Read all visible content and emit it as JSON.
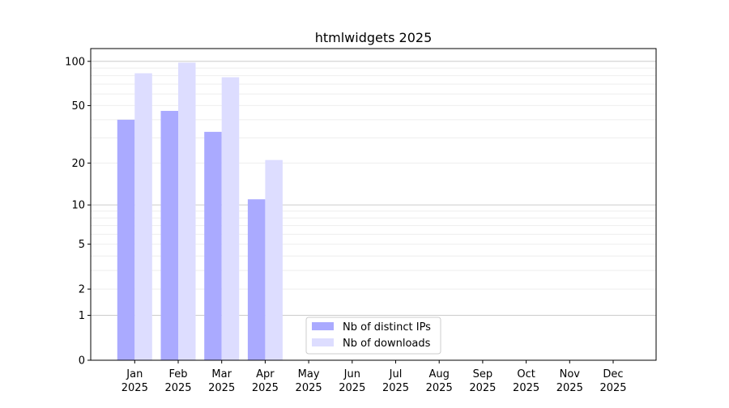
{
  "chart_data": {
    "type": "bar",
    "title": "htmlwidgets 2025",
    "xlabel": "",
    "ylabel": "",
    "y_scale": "log(1+y)",
    "ylim": [
      0,
      122
    ],
    "grid": true,
    "legend_placement": "bottom-center",
    "categories": [
      "Jan\n2025",
      "Feb\n2025",
      "Mar\n2025",
      "Apr\n2025",
      "May\n2025",
      "Jun\n2025",
      "Jul\n2025",
      "Aug\n2025",
      "Sep\n2025",
      "Oct\n2025",
      "Nov\n2025",
      "Dec\n2025"
    ],
    "y_ticks": [
      0,
      1,
      2,
      5,
      10,
      20,
      50,
      100
    ],
    "series": [
      {
        "name": "Nb of distinct IPs",
        "color": "#aaaaff",
        "values": [
          40,
          46,
          33,
          11,
          null,
          null,
          null,
          null,
          null,
          null,
          null,
          null
        ]
      },
      {
        "name": "Nb of downloads",
        "color": "#ddddff",
        "values": [
          83,
          98,
          78,
          21,
          null,
          null,
          null,
          null,
          null,
          null,
          null,
          null
        ]
      }
    ]
  }
}
